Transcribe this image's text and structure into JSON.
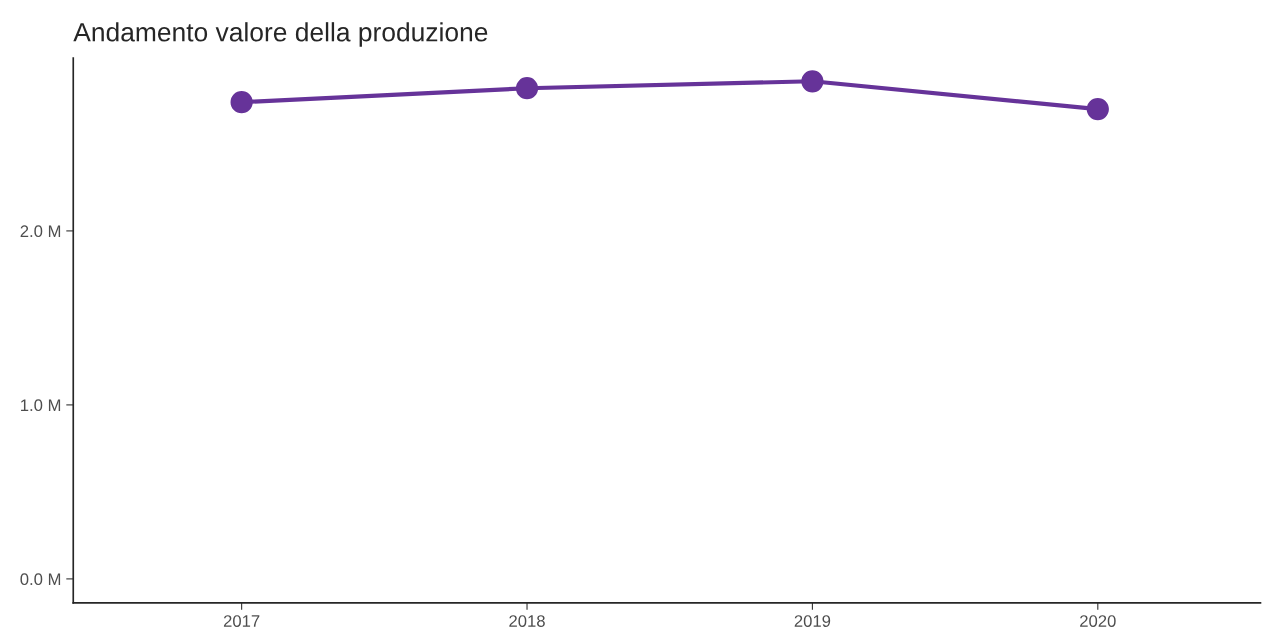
{
  "chart_data": {
    "type": "line",
    "title": "Andamento valore della produzione",
    "x": [
      2017,
      2018,
      2019,
      2020
    ],
    "series": [
      {
        "color": "#663399",
        "values": [
          2740000,
          2820000,
          2860000,
          2700000
        ]
      }
    ],
    "xlim": [
      2016.41,
      2020.57
    ],
    "xticks": [
      2017,
      2018,
      2019,
      2020
    ],
    "ylim": [
      -138000,
      2994000
    ],
    "yticks": [
      {
        "value": 0,
        "label": "0.0 M"
      },
      {
        "value": 1000000,
        "label": "1.0 M"
      },
      {
        "value": 2000000,
        "label": "2.0 M"
      }
    ],
    "grid": false,
    "marker": "circle",
    "line_style": "solid"
  }
}
